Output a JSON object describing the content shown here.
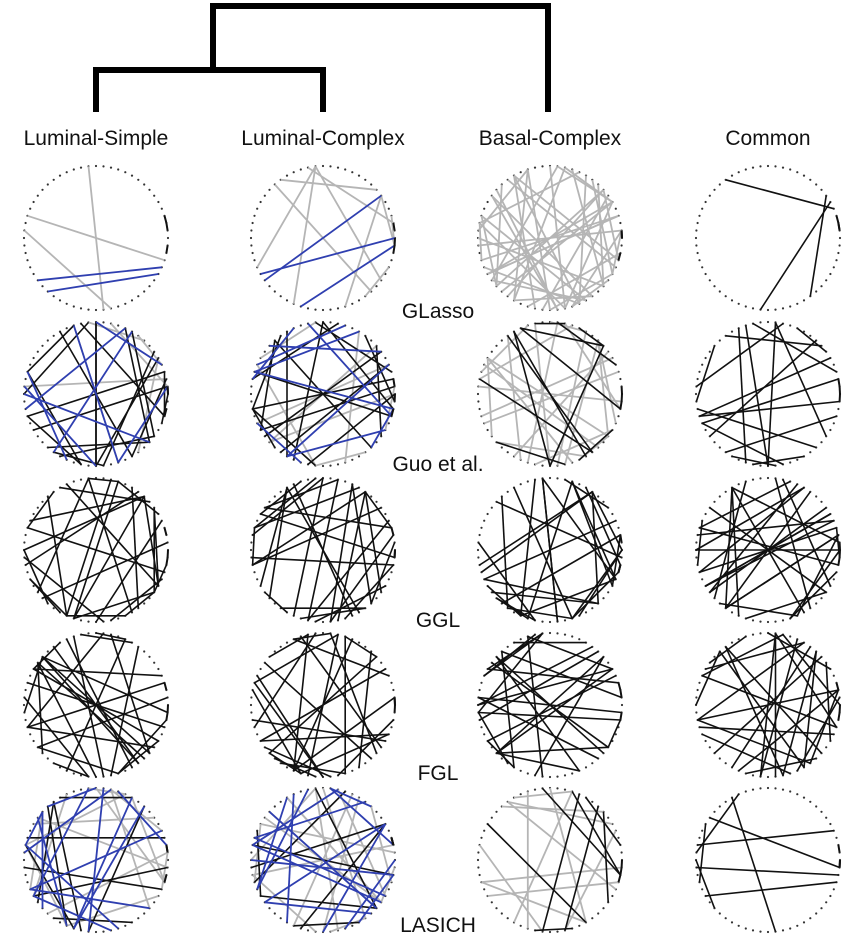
{
  "columns": [
    {
      "label": "Luminal-Simple"
    },
    {
      "label": "Luminal-Complex"
    },
    {
      "label": "Basal-Complex"
    },
    {
      "label": "Common"
    }
  ],
  "methods": [
    {
      "label": "GLasso"
    },
    {
      "label": "Guo et al."
    },
    {
      "label": "GGL"
    },
    {
      "label": "FGL"
    },
    {
      "label": "LASICH"
    }
  ],
  "colors": {
    "background": "#ffffff",
    "dendrogram": "#000000",
    "edge_black": "#111111",
    "edge_gray": "#b5b5b5",
    "edge_blue": "#2f3fb0",
    "node_dot": "#333333"
  },
  "network": {
    "node_count": 60,
    "node_style": "dotted circle"
  }
}
